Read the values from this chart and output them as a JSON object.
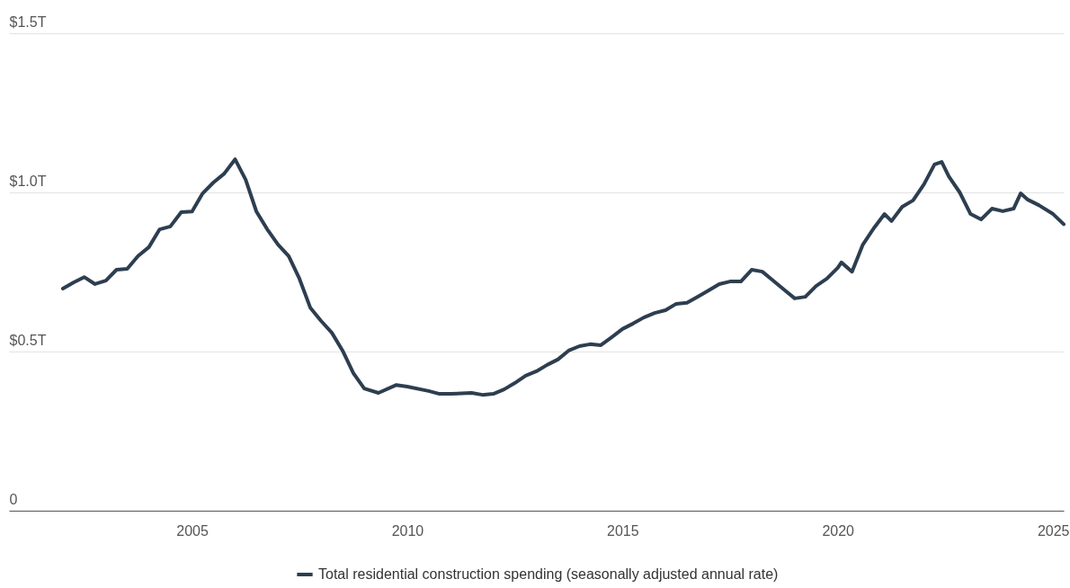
{
  "chart_data": {
    "type": "line",
    "x": [
      "2002-01",
      "2002-04",
      "2002-07",
      "2002-10",
      "2003-01",
      "2003-04",
      "2003-07",
      "2003-10",
      "2004-01",
      "2004-04",
      "2004-07",
      "2004-10",
      "2005-01",
      "2005-04",
      "2005-07",
      "2005-10",
      "2006-01",
      "2006-04",
      "2006-07",
      "2006-10",
      "2007-01",
      "2007-04",
      "2007-07",
      "2007-10",
      "2008-01",
      "2008-04",
      "2008-07",
      "2008-10",
      "2009-01",
      "2009-05",
      "2009-10",
      "2010-01",
      "2010-07",
      "2010-10",
      "2011-01",
      "2011-07",
      "2011-10",
      "2012-01",
      "2012-04",
      "2012-07",
      "2012-10",
      "2013-01",
      "2013-04",
      "2013-07",
      "2013-10",
      "2014-01",
      "2014-04",
      "2014-07",
      "2014-10",
      "2015-01",
      "2015-04",
      "2015-07",
      "2015-10",
      "2016-01",
      "2016-04",
      "2016-07",
      "2016-10",
      "2017-01",
      "2017-04",
      "2017-07",
      "2017-10",
      "2018-01",
      "2018-04",
      "2018-07",
      "2018-10",
      "2019-01",
      "2019-04",
      "2019-07",
      "2019-10",
      "2020-01",
      "2020-02",
      "2020-05",
      "2020-08",
      "2020-11",
      "2021-02",
      "2021-04",
      "2021-07",
      "2021-10",
      "2022-01",
      "2022-04",
      "2022-06",
      "2022-08",
      "2022-11",
      "2023-02",
      "2023-05",
      "2023-08",
      "2023-11",
      "2024-02",
      "2024-04",
      "2024-06",
      "2024-09",
      "2025-01",
      "2025-04"
    ],
    "series": [
      {
        "name": "Total residential construction spending (seasonally adjusted annual rate)",
        "color": "#2d3e50",
        "values": [
          0.698,
          0.717,
          0.734,
          0.712,
          0.723,
          0.757,
          0.76,
          0.8,
          0.828,
          0.884,
          0.893,
          0.938,
          0.94,
          0.997,
          1.031,
          1.059,
          1.104,
          1.04,
          0.94,
          0.884,
          0.836,
          0.8,
          0.729,
          0.638,
          0.596,
          0.559,
          0.503,
          0.432,
          0.384,
          0.37,
          0.395,
          0.39,
          0.376,
          0.367,
          0.367,
          0.37,
          0.364,
          0.367,
          0.381,
          0.401,
          0.424,
          0.438,
          0.458,
          0.475,
          0.503,
          0.517,
          0.523,
          0.52,
          0.545,
          0.571,
          0.588,
          0.607,
          0.621,
          0.63,
          0.65,
          0.653,
          0.672,
          0.692,
          0.712,
          0.72,
          0.72,
          0.757,
          0.751,
          0.723,
          0.695,
          0.667,
          0.672,
          0.706,
          0.729,
          0.763,
          0.78,
          0.751,
          0.836,
          0.887,
          0.932,
          0.91,
          0.955,
          0.975,
          1.025,
          1.088,
          1.096,
          1.05,
          1.0,
          0.932,
          0.915,
          0.949,
          0.941,
          0.949,
          0.997,
          0.977,
          0.96,
          0.932,
          0.9
        ]
      }
    ],
    "xlim": [
      "2000-10",
      "2025-04"
    ],
    "xticks": [
      {
        "value": "2005",
        "label": "2005"
      },
      {
        "value": "2010",
        "label": "2010"
      },
      {
        "value": "2015",
        "label": "2015"
      },
      {
        "value": "2020",
        "label": "2020"
      },
      {
        "value": "2025",
        "label": "2025"
      }
    ],
    "ylim": [
      0,
      1.5
    ],
    "yticks": [
      {
        "value": 0,
        "label": "0"
      },
      {
        "value": 0.5,
        "label": "$0.5T"
      },
      {
        "value": 1.0,
        "label": "$1.0T"
      },
      {
        "value": 1.5,
        "label": "$1.5T"
      }
    ],
    "grid": "y",
    "legend": "bottom"
  }
}
